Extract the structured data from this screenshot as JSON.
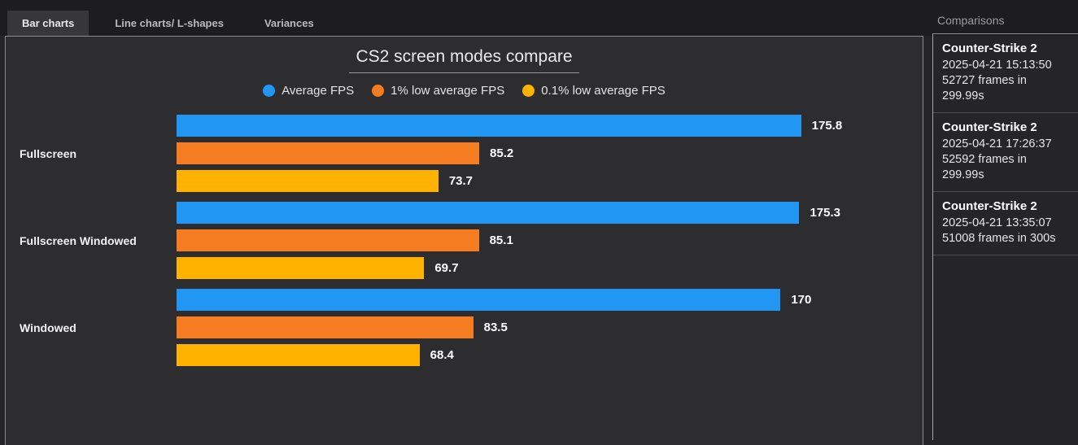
{
  "tabs": [
    {
      "label": "Bar charts",
      "active": true
    },
    {
      "label": "Line charts/ L-shapes",
      "active": false
    },
    {
      "label": "Variances",
      "active": false
    }
  ],
  "chart_data": {
    "type": "bar",
    "orientation": "horizontal",
    "title": "CS2 screen modes compare",
    "categories": [
      "Fullscreen",
      "Fullscreen Windowed",
      "Windowed"
    ],
    "series": [
      {
        "name": "Average FPS",
        "color": "#2196F3",
        "values": [
          175.8,
          175.3,
          170
        ]
      },
      {
        "name": "1% low average FPS",
        "color": "#F57C20",
        "values": [
          85.2,
          85.1,
          83.5
        ]
      },
      {
        "name": "0.1% low average FPS",
        "color": "#FFB300",
        "values": [
          73.7,
          69.7,
          68.4
        ]
      }
    ],
    "xlim": [
      0,
      210
    ],
    "value_labels": true,
    "legend_position": "top",
    "grid": false
  },
  "sidebar": {
    "title": "Comparisons",
    "items": [
      {
        "title": "Counter-Strike 2",
        "lines": [
          "2025-04-21 15:13:50",
          "52727 frames in",
          "299.99s"
        ]
      },
      {
        "title": "Counter-Strike 2",
        "lines": [
          "2025-04-21 17:26:37",
          "52592 frames in",
          "299.99s"
        ]
      },
      {
        "title": "Counter-Strike 2",
        "lines": [
          "2025-04-21 13:35:07",
          "51008 frames in 300s"
        ]
      }
    ]
  }
}
